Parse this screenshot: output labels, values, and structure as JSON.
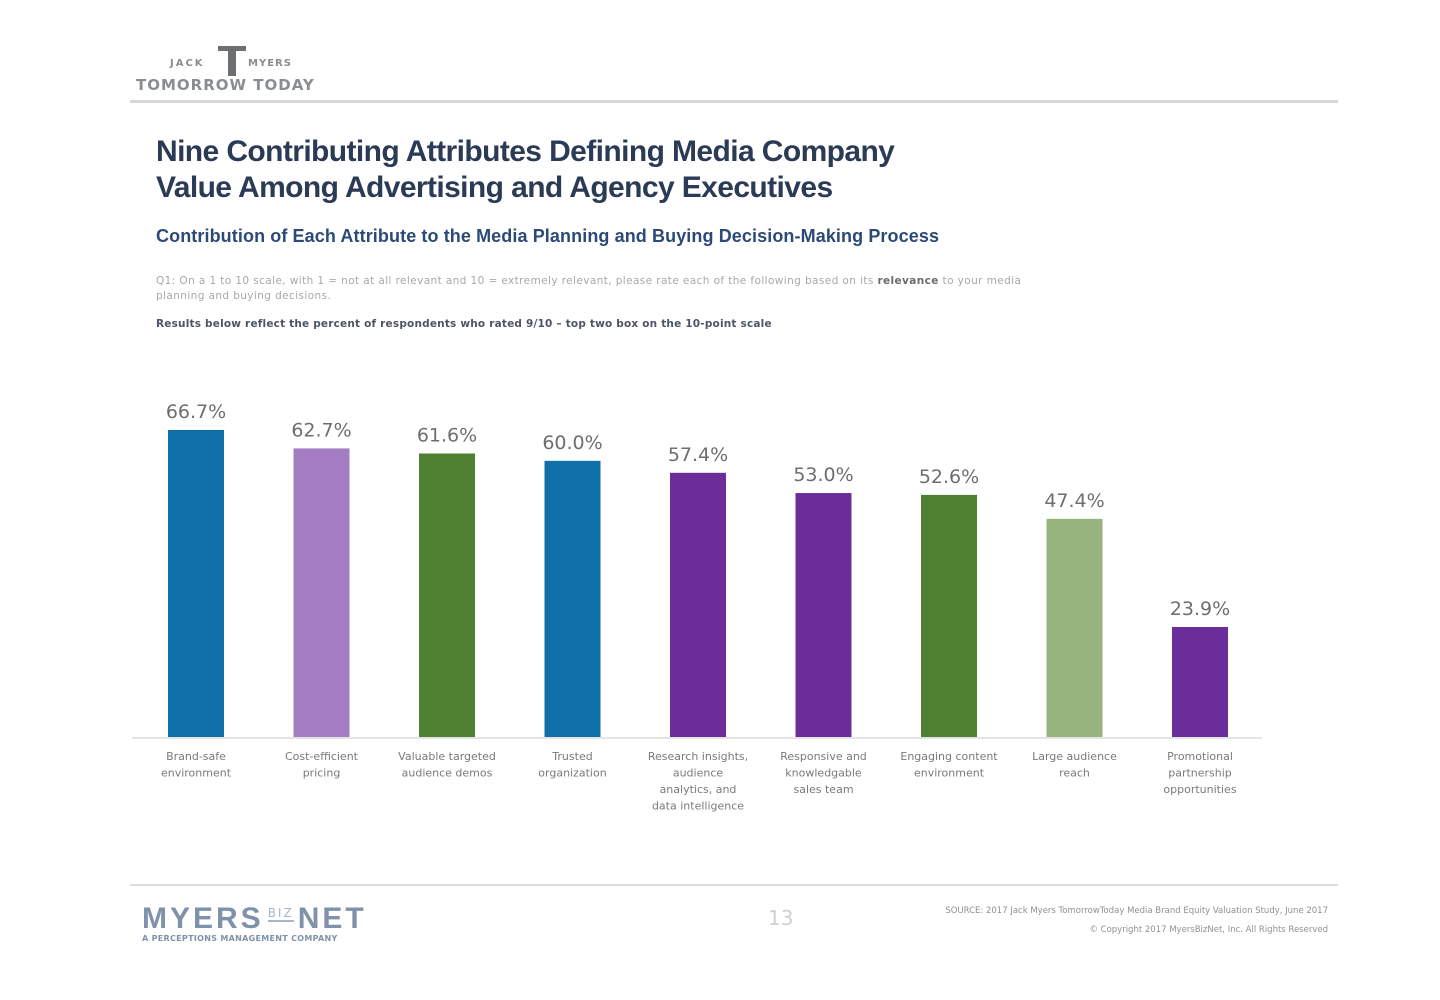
{
  "header": {
    "logo": {
      "jack": "JACK",
      "myers": "MYERS",
      "tagline": "TOMORROW TODAY"
    },
    "title_line1": "Nine Contributing Attributes Defining Media Company",
    "title_line2": "Value Among Advertising and Agency Executives",
    "subtitle": "Contribution of Each Attribute to the Media Planning and Buying Decision-Making Process",
    "question_part1": "Q1: On a 1 to 10 scale, with 1 = not at all relevant and 10 = extremely relevant, please rate each of the following based on its ",
    "question_bold": "relevance",
    "question_part2": " to your media planning and buying decisions.",
    "results_note": "Results below reflect the percent of respondents who rated 9/10 – top two box on the 10-point scale"
  },
  "chart_data": {
    "type": "bar",
    "title": "Contribution of Each Attribute to the Media Planning and Buying Decision-Making Process",
    "xlabel": "",
    "ylabel": "",
    "ylim": [
      0,
      70
    ],
    "grid": false,
    "legend": "none",
    "value_format": "percent-1dp",
    "categories": [
      [
        "Brand-safe",
        "environment"
      ],
      [
        "Cost-efficient",
        "pricing"
      ],
      [
        "Valuable targeted",
        "audience demos"
      ],
      [
        "Trusted",
        "organization"
      ],
      [
        "Research insights,",
        "audience",
        "analytics, and",
        "data intelligence"
      ],
      [
        "Responsive and",
        "knowledgable",
        "sales team"
      ],
      [
        "Engaging content",
        "environment"
      ],
      [
        "Large audience",
        "reach"
      ],
      [
        "Promotional",
        "partnership",
        "opportunities"
      ]
    ],
    "values": [
      66.7,
      62.7,
      61.6,
      60.0,
      57.4,
      53.0,
      52.6,
      47.4,
      23.9
    ],
    "data_labels": [
      "66.7%",
      "62.7%",
      "61.6%",
      "60.0%",
      "57.4%",
      "53.0%",
      "52.6%",
      "47.4%",
      "23.9%"
    ],
    "colors": [
      "#0f6fa8",
      "#a57dc2",
      "#4f7f30",
      "#0f6fa8",
      "#6a2d9a",
      "#6a2d9a",
      "#4f7f30",
      "#97b47e",
      "#6a2d9a"
    ]
  },
  "footer": {
    "logo": {
      "myers": "MYERS",
      "biz": "BIZ",
      "net": "NET",
      "tagline": "A PERCEPTIONS MANAGEMENT COMPANY"
    },
    "page_number": "13",
    "source_line": "SOURCE: 2017 Jack Myers TomorrowToday Media Brand Equity Valuation Study, June 2017",
    "copyright_line": "© Copyright 2017 MyersBizNet, Inc. All Rights Reserved"
  }
}
